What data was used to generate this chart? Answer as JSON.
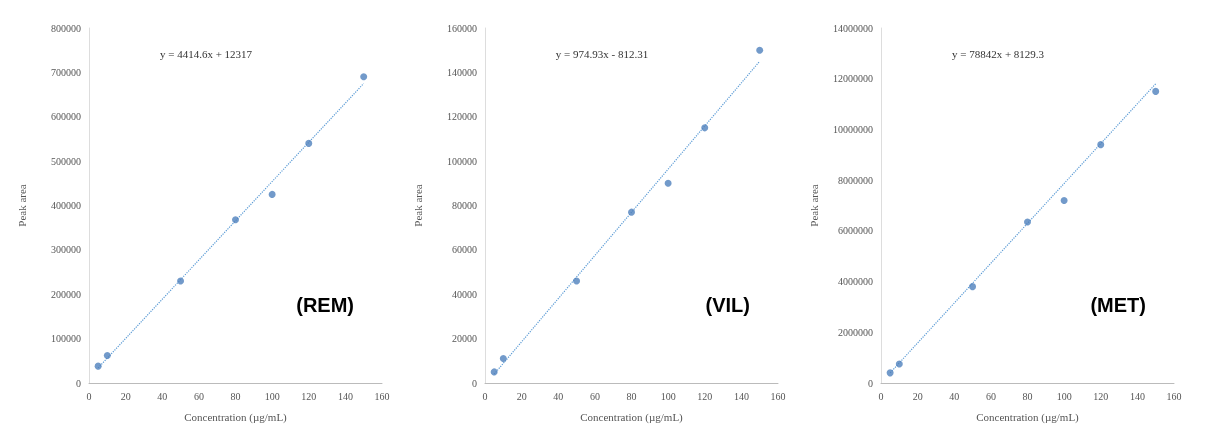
{
  "chart_data": [
    {
      "type": "scatter",
      "xlabel": "Concentration (µg/mL)",
      "ylabel": "Peak area",
      "annotations": [
        "y = 4414.6x + 12317",
        "(REM)"
      ],
      "xlim": [
        0,
        160
      ],
      "xticks": [
        0,
        20,
        40,
        60,
        80,
        100,
        120,
        140,
        160
      ],
      "ylim": [
        0,
        800000
      ],
      "yticks": [
        0,
        100000,
        200000,
        300000,
        400000,
        500000,
        600000,
        700000,
        800000
      ],
      "grid": false,
      "marker": "circle",
      "series": [
        {
          "color": "#4f81bd",
          "x": [
            5,
            10,
            50,
            80,
            100,
            120,
            150
          ],
          "values": [
            38000,
            62000,
            230000,
            368000,
            425000,
            540000,
            690000
          ]
        },
        {
          "type": "line",
          "color": "#5b9bd5",
          "line_style": "dotted",
          "marker": "none",
          "x": [
            5,
            150
          ],
          "values": [
            34000,
            675000
          ]
        }
      ]
    },
    {
      "type": "scatter",
      "xlabel": "Concentration (µg/mL)",
      "ylabel": "Peak area",
      "annotations": [
        "y = 974.93x - 812.31",
        "(VIL)"
      ],
      "xlim": [
        0,
        160
      ],
      "xticks": [
        0,
        20,
        40,
        60,
        80,
        100,
        120,
        140,
        160
      ],
      "ylim": [
        0,
        160000
      ],
      "yticks": [
        0,
        20000,
        40000,
        60000,
        80000,
        100000,
        120000,
        140000,
        160000
      ],
      "grid": false,
      "marker": "circle",
      "series": [
        {
          "color": "#4f81bd",
          "x": [
            5,
            10,
            50,
            80,
            100,
            120,
            150
          ],
          "values": [
            5000,
            11000,
            46000,
            77000,
            90000,
            115000,
            150000
          ]
        },
        {
          "type": "line",
          "color": "#5b9bd5",
          "line_style": "dotted",
          "marker": "none",
          "x": [
            5,
            150
          ],
          "values": [
            4000,
            145000
          ]
        }
      ]
    },
    {
      "type": "scatter",
      "xlabel": "Concentration (µg/mL)",
      "ylabel": "Peak area",
      "annotations": [
        "y = 78842x + 8129.3",
        "(MET)"
      ],
      "xlim": [
        0,
        160
      ],
      "xticks": [
        0,
        20,
        40,
        60,
        80,
        100,
        120,
        140,
        160
      ],
      "ylim": [
        0,
        14000000
      ],
      "yticks": [
        0,
        2000000,
        4000000,
        6000000,
        8000000,
        10000000,
        12000000,
        14000000
      ],
      "grid": false,
      "marker": "circle",
      "series": [
        {
          "color": "#4f81bd",
          "x": [
            5,
            10,
            50,
            80,
            100,
            120,
            150
          ],
          "values": [
            400000,
            750000,
            3800000,
            6350000,
            7200000,
            9400000,
            11500000
          ]
        },
        {
          "type": "line",
          "color": "#5b9bd5",
          "line_style": "dotted",
          "marker": "none",
          "x": [
            5,
            150
          ],
          "values": [
            400000,
            11800000
          ]
        }
      ]
    }
  ]
}
